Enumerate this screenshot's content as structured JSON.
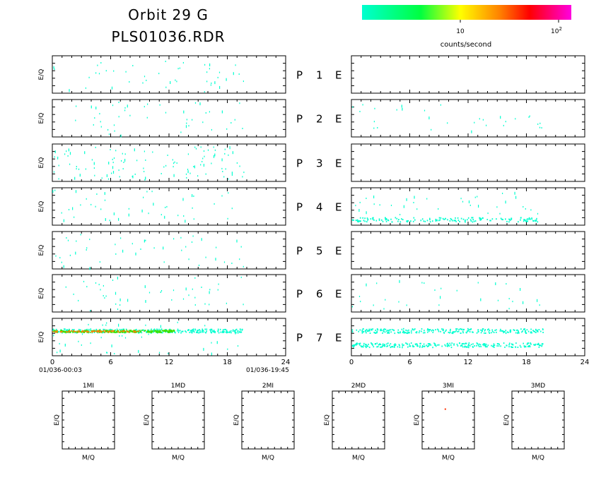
{
  "header": {
    "title_line1": "Orbit 29 G",
    "title_line2": "PLS01036.RDR"
  },
  "colorbar": {
    "label": "counts/second",
    "tick_10": "10",
    "tick_100_base": "10",
    "tick_100_exp": "2",
    "colors": [
      "#00ffd0",
      "#00ff40",
      "#ffff00",
      "#ff8000",
      "#ff0000",
      "#ff00e0"
    ]
  },
  "panel_labels": {
    "ylabel": "E/Q",
    "xlabel_mq": "M/Q",
    "rows": [
      {
        "p": "P",
        "num": "1",
        "e": "E"
      },
      {
        "p": "P",
        "num": "2",
        "e": "E"
      },
      {
        "p": "P",
        "num": "3",
        "e": "E"
      },
      {
        "p": "P",
        "num": "4",
        "e": "E"
      },
      {
        "p": "P",
        "num": "5",
        "e": "E"
      },
      {
        "p": "P",
        "num": "6",
        "e": "E"
      },
      {
        "p": "P",
        "num": "7",
        "e": "E"
      }
    ],
    "small_panels": [
      "1MI",
      "1MD",
      "2MI",
      "2MD",
      "3MI",
      "3MD"
    ]
  },
  "time_axis": {
    "start_label": "01/036-00:03",
    "end_label": "01/036-19:45",
    "ticks": [
      "0",
      "6",
      "12",
      "18",
      "24"
    ]
  },
  "chart_data": {
    "type": "heatmap",
    "x_unit": "hours",
    "xlim": [
      0,
      24
    ],
    "data_end_hour": 19.7,
    "colorscale": "log counts/second",
    "left_column": {
      "P1": {
        "density": "sparse",
        "color": "#00ffd0"
      },
      "P2": {
        "density": "sparse",
        "color": "#00ffd0"
      },
      "P3": {
        "density": "moderate",
        "color": "#00ffd0"
      },
      "P4": {
        "density": "sparse",
        "color": "#00ffd0"
      },
      "P5": {
        "density": "sparse",
        "color": "#00ffd0"
      },
      "P6": {
        "density": "sparse",
        "color": "#00ffd0"
      },
      "P7": {
        "density": "band",
        "color": "#00ffd0",
        "hot_band_color": "#40e000",
        "hot_band_peak_color": "#ff8000"
      }
    },
    "right_column": {
      "P1": {
        "density": "empty"
      },
      "P2": {
        "density": "sparse",
        "color": "#00ffd0"
      },
      "P3": {
        "density": "empty"
      },
      "P4": {
        "density": "low-energy band",
        "color": "#00ffd0"
      },
      "P5": {
        "density": "empty"
      },
      "P6": {
        "density": "sparse",
        "color": "#00ffd0"
      },
      "P7": {
        "density": "two bands",
        "color": "#00ffd0"
      }
    },
    "small_panels": {
      "1MI": "empty",
      "1MD": "empty",
      "2MI": "empty",
      "2MD": "empty",
      "3MI": {
        "points": 1,
        "color": "#ff3000"
      },
      "3MD": "empty"
    }
  }
}
